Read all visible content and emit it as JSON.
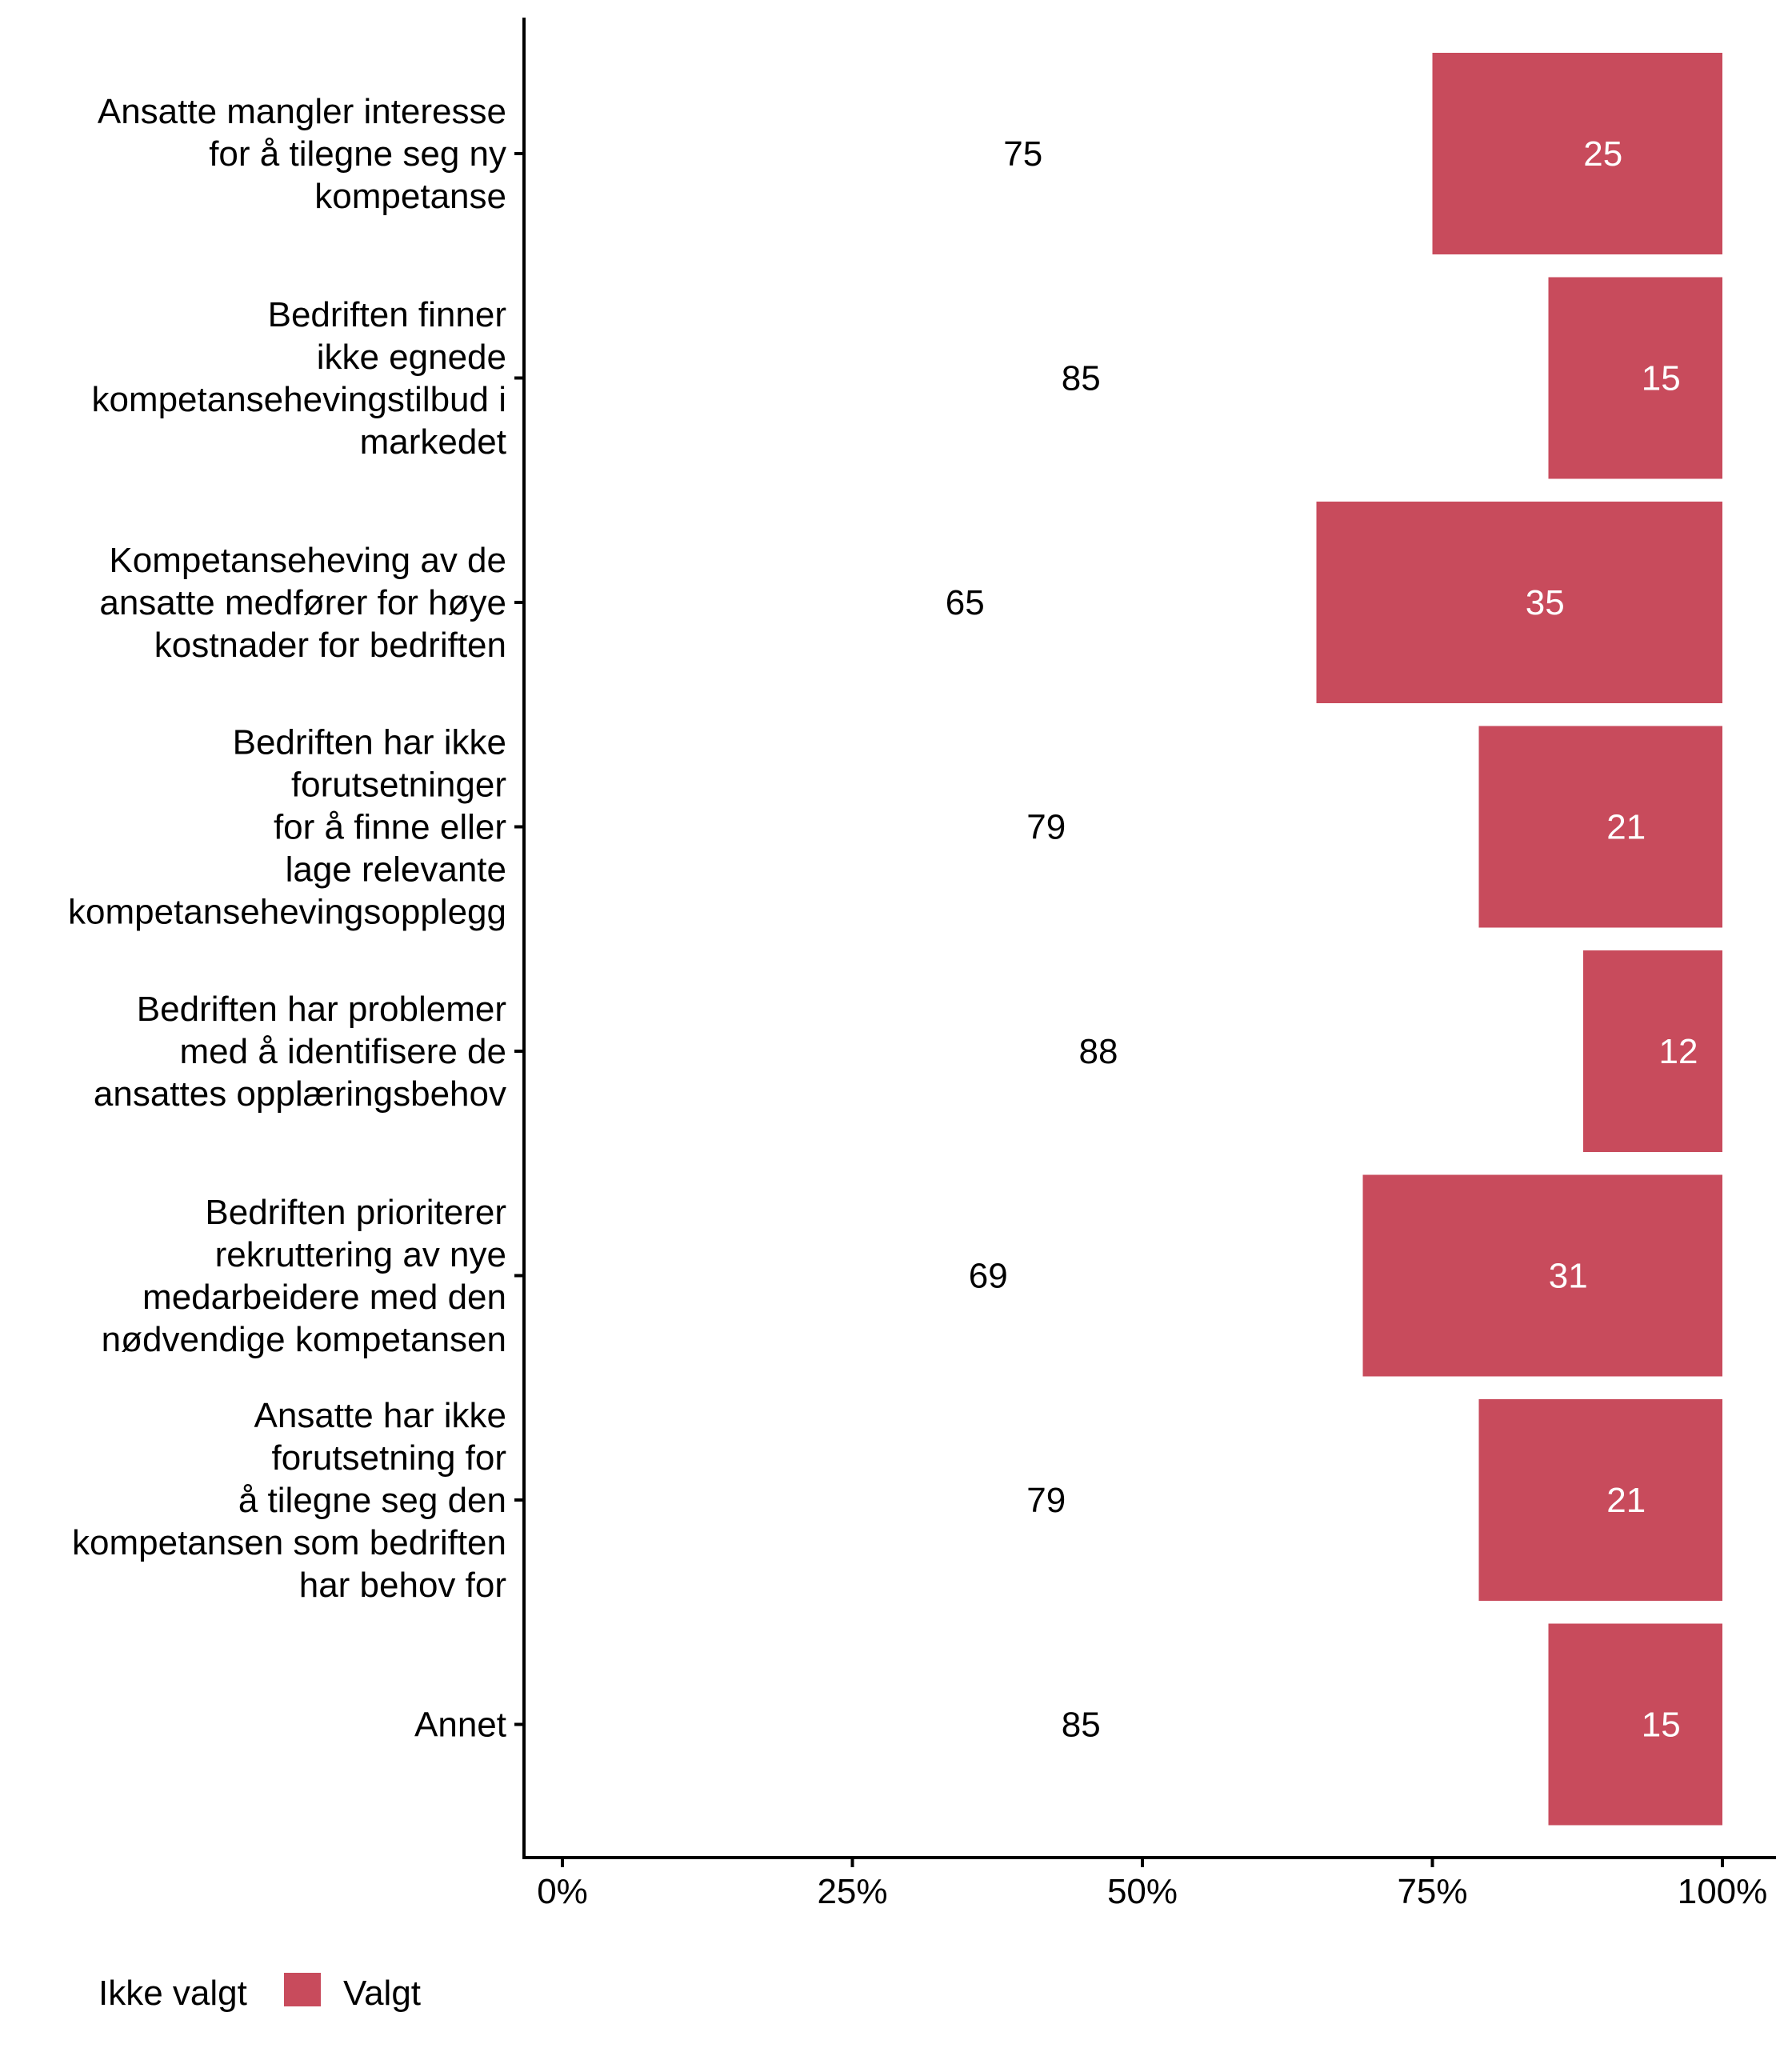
{
  "chart_data": {
    "type": "bar",
    "orientation": "horizontal",
    "stacked": "percent",
    "title": "",
    "xlabel": "",
    "ylabel": "",
    "xlim": [
      0,
      100
    ],
    "x_ticks": [
      "0%",
      "25%",
      "50%",
      "75%",
      "100%"
    ],
    "x_tick_values": [
      0,
      25,
      50,
      75,
      100
    ],
    "grid": false,
    "legend_position": "bottom-left",
    "categories": [
      [
        "Ansatte mangler interesse",
        "for å tilegne seg ny",
        "kompetanse"
      ],
      [
        "Bedriften finner",
        "ikke egnede",
        "kompetansehevingstilbud i",
        "markedet"
      ],
      [
        "Kompetanseheving av de",
        "ansatte medfører for høye",
        "kostnader for bedriften"
      ],
      [
        "Bedriften har ikke",
        "forutsetninger",
        "for å finne eller",
        "lage relevante",
        "kompetansehevingsopplegg"
      ],
      [
        "Bedriften har problemer",
        "med å identifisere de",
        "ansattes opplæringsbehov"
      ],
      [
        "Bedriften prioriterer",
        "rekruttering av nye",
        "medarbeidere med den",
        "nødvendige kompetansen"
      ],
      [
        "Ansatte har ikke",
        "forutsetning for",
        "å tilegne seg den",
        "kompetansen som bedriften",
        "har behov for"
      ],
      [
        "Annet"
      ]
    ],
    "series": [
      {
        "name": "Ikke valgt",
        "color": "#ffffff",
        "label_color": "#000000",
        "values": [
          75,
          85,
          65,
          79,
          88,
          69,
          79,
          85
        ]
      },
      {
        "name": "Valgt",
        "color": "#C84B5C",
        "label_color": "#ffffff",
        "values": [
          25,
          15,
          35,
          21,
          12,
          31,
          21,
          15
        ]
      }
    ]
  }
}
